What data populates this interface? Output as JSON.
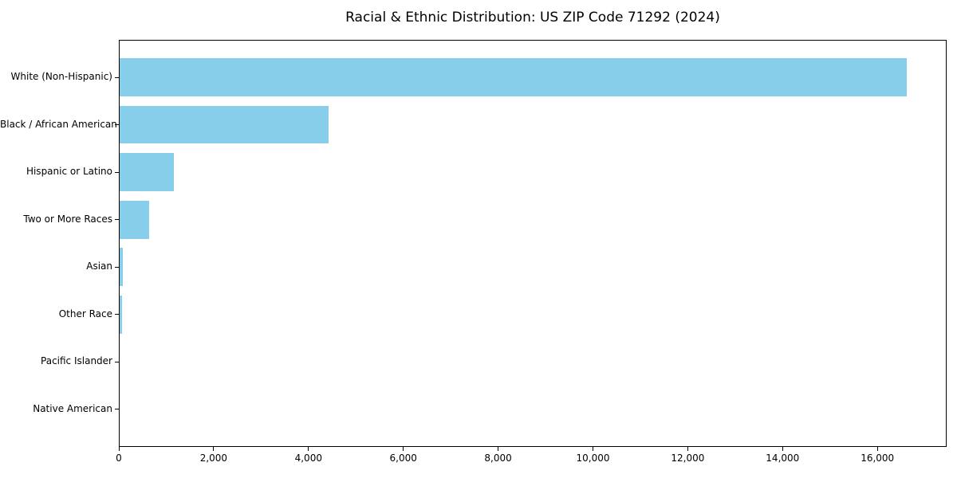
{
  "chart_data": {
    "type": "bar",
    "orientation": "horizontal",
    "title": "Racial & Ethnic Distribution: US ZIP Code 71292 (2024)",
    "categories": [
      "White (Non-Hispanic)",
      "Black / African American",
      "Hispanic or Latino",
      "Two or More Races",
      "Asian",
      "Other Race",
      "Pacific Islander",
      "Native American"
    ],
    "values": [
      16600,
      4400,
      1140,
      620,
      75,
      50,
      0,
      0
    ],
    "bar_color": "#87CEEB",
    "xlabel": "",
    "ylabel": "",
    "xlim": [
      0,
      17460
    ],
    "xticks": [
      0,
      2000,
      4000,
      6000,
      8000,
      10000,
      12000,
      14000,
      16000
    ],
    "xtick_labels": [
      "0",
      "2,000",
      "4,000",
      "6,000",
      "8,000",
      "10,000",
      "12,000",
      "14,000",
      "16,000"
    ],
    "grid": false,
    "legend": null,
    "text_color": "#000000",
    "background_color": "#ffffff"
  }
}
